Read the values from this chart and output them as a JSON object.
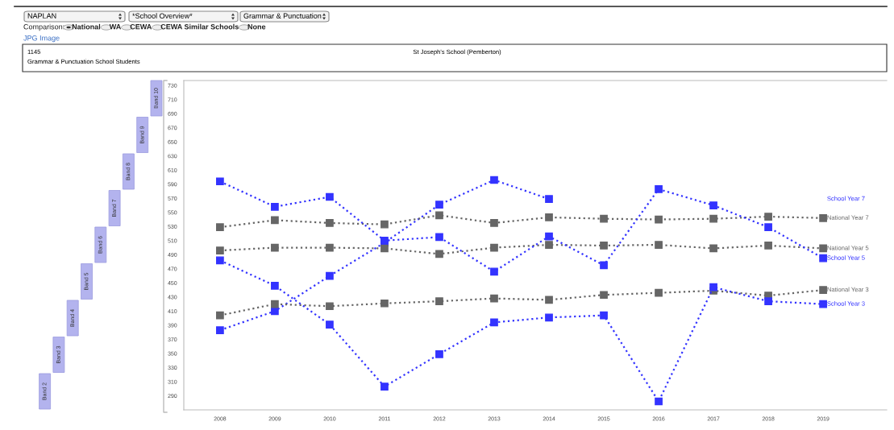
{
  "chart_data": {
    "type": "line",
    "title": "St Joseph's School (Pemberton)",
    "subtitle": "Grammar & Punctuation School Students",
    "annotations": [
      "NAPLAN",
      "*School Overview*",
      "Grammar & Punctuation",
      "Comparison:",
      "National",
      "WA",
      "CEWA",
      "CEWA Similar Schools",
      "None",
      "JPG Image",
      "1145",
      "Band 2",
      "Band 3",
      "Band 4",
      "Band 5",
      "Band 6",
      "Band 7",
      "Band 8",
      "Band 9",
      "Band 10"
    ],
    "x": [
      2008,
      2009,
      2010,
      2011,
      2012,
      2013,
      2014,
      2015,
      2016,
      2017,
      2018,
      2019
    ],
    "series": [
      {
        "name": "School Year 7",
        "color": "#3333ff",
        "values": [
          383,
          410,
          460,
          507,
          561,
          596,
          569,
          null,
          null,
          null,
          null,
          null
        ]
      },
      {
        "name": "National Year 7",
        "color": "#666666",
        "values": [
          529,
          539,
          535,
          533,
          546,
          535,
          543,
          541,
          540,
          541,
          544,
          542
        ]
      },
      {
        "name": "National Year 5",
        "color": "#666666",
        "values": [
          496,
          500,
          500,
          499,
          491,
          500,
          504,
          503,
          504,
          499,
          503,
          499
        ]
      },
      {
        "name": "School Year 5",
        "color": "#3333ff",
        "values": [
          594,
          558,
          572,
          510,
          515,
          466,
          516,
          475,
          583,
          560,
          529,
          485
        ]
      },
      {
        "name": "National Year 3",
        "color": "#666666",
        "values": [
          404,
          420,
          417,
          421,
          424,
          428,
          426,
          433,
          436,
          439,
          432,
          440
        ]
      },
      {
        "name": "School Year 3",
        "color": "#3333ff",
        "values": [
          482,
          446,
          391,
          303,
          349,
          394,
          401,
          404,
          282,
          444,
          424,
          420
        ]
      }
    ],
    "xlim": [
      2007.34,
      2020.16
    ],
    "xticks": [
      2008,
      2009,
      2010,
      2011,
      2012,
      2013,
      2014,
      2015,
      2016,
      2017,
      2018,
      2019
    ],
    "ylim": [
      270,
      737
    ],
    "yticks": [
      290,
      310,
      330,
      350,
      370,
      390,
      410,
      430,
      450,
      470,
      490,
      510,
      530,
      550,
      570,
      590,
      610,
      630,
      650,
      670,
      690,
      710,
      730
    ],
    "marker": "square",
    "line_style": "dotted",
    "grid": false,
    "legend": false
  }
}
